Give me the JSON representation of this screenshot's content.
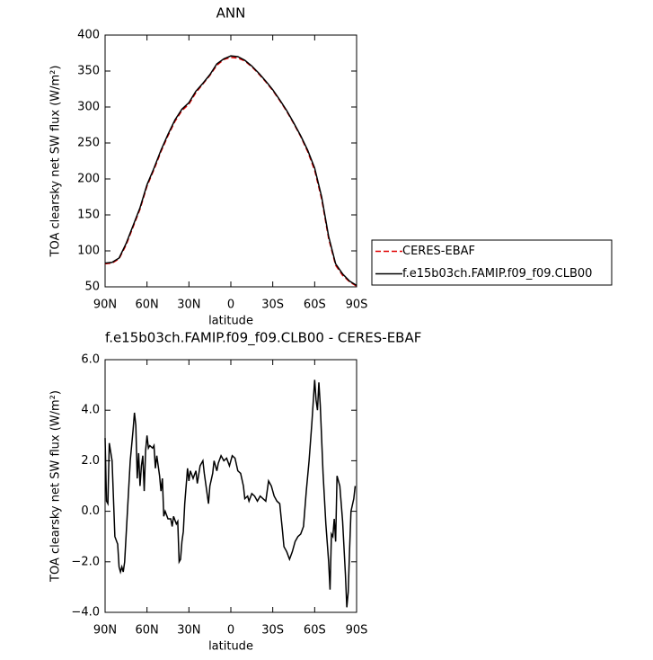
{
  "chart_data": [
    {
      "type": "line",
      "title": "ANN",
      "x_label": "latitude",
      "y_label": "TOA clearsky net SW flux (W/m²)",
      "x": [
        90,
        85,
        80,
        75,
        70,
        65,
        60,
        55,
        50,
        45,
        40,
        35,
        30,
        25,
        20,
        15,
        10,
        5,
        0,
        -5,
        -10,
        -15,
        -20,
        -25,
        -30,
        -35,
        -40,
        -45,
        -50,
        -55,
        -60,
        -65,
        -70,
        -75,
        -80,
        -85,
        -90
      ],
      "series": [
        {
          "name": "CERES-EBAF",
          "color": "#e00000",
          "linestyle": "dashed",
          "values": [
            82,
            83,
            89,
            108,
            133,
            158,
            190,
            213,
            238,
            260,
            280,
            295,
            304,
            320,
            332,
            344,
            358,
            366,
            369,
            368,
            364,
            356,
            346,
            335,
            323,
            309,
            294,
            277,
            259,
            238,
            212,
            172,
            117,
            80,
            66,
            57,
            51
          ]
        },
        {
          "name": "f.e15b03ch.FAMIP.f09_f09.CLB00",
          "color": "#000000",
          "linestyle": "solid",
          "values": [
            83,
            84,
            90,
            110,
            135,
            160,
            192,
            215,
            240,
            262,
            282,
            297,
            306,
            322,
            333,
            345,
            360,
            367,
            371,
            370,
            365,
            357,
            347,
            336,
            324,
            310,
            295,
            278,
            260,
            240,
            215,
            175,
            120,
            82,
            68,
            58,
            52
          ]
        }
      ],
      "xlim": [
        90,
        -90
      ],
      "xticks": [
        {
          "value": 90,
          "label": "90N"
        },
        {
          "value": 60,
          "label": "60N"
        },
        {
          "value": 30,
          "label": "30N"
        },
        0,
        {
          "value": -30,
          "label": "30S"
        },
        {
          "value": -60,
          "label": "60S"
        },
        {
          "value": -90,
          "label": "90S"
        }
      ],
      "ylim": [
        50,
        400
      ],
      "yticks": [
        50,
        100,
        150,
        200,
        250,
        300,
        350,
        400
      ],
      "legend": "right"
    },
    {
      "type": "line",
      "title": "f.e15b03ch.FAMIP.f09_f09.CLB00 - CERES-EBAF",
      "x_label": "latitude",
      "y_label": "TOA clearsky net SW flux (W/m²)",
      "x": [
        90,
        89,
        88,
        87,
        85,
        83,
        81,
        80,
        79,
        78,
        77,
        76,
        74,
        72,
        70,
        69,
        68,
        67,
        66,
        65,
        64,
        63,
        62,
        61,
        60,
        59,
        58,
        56,
        55,
        54,
        53,
        51,
        50,
        49,
        48,
        47,
        45,
        43,
        42,
        41,
        39,
        38,
        37,
        36,
        35,
        34,
        33,
        31,
        30,
        29,
        27,
        25,
        24,
        22,
        20,
        19,
        18,
        16,
        15,
        13,
        12,
        10,
        9,
        7,
        5,
        3,
        1,
        -1,
        -3,
        -5,
        -7,
        -9,
        -10,
        -12,
        -13,
        -15,
        -17,
        -19,
        -21,
        -23,
        -25,
        -27,
        -29,
        -31,
        -33,
        -35,
        -37,
        -38,
        -40,
        -42,
        -44,
        -46,
        -48,
        -50,
        -52,
        -54,
        -56,
        -58,
        -60,
        -61,
        -62,
        -63,
        -64,
        -66,
        -68,
        -70,
        -71,
        -72,
        -73,
        -74,
        -75,
        -76,
        -78,
        -80,
        -82,
        -83,
        -84,
        -85,
        -86,
        -88,
        -89
      ],
      "values": [
        2.9,
        0.4,
        0.3,
        2.7,
        2.0,
        -1.0,
        -1.3,
        -2.2,
        -2.4,
        -2.2,
        -2.4,
        -2.0,
        0,
        2.0,
        3.2,
        3.9,
        3.4,
        1.3,
        2.3,
        1.0,
        1.8,
        2.2,
        0.8,
        2.4,
        3.0,
        2.5,
        2.6,
        2.5,
        2.6,
        1.7,
        2.2,
        1.4,
        0.8,
        1.3,
        -0.2,
        0.0,
        -0.3,
        -0.3,
        -0.6,
        -0.2,
        -0.5,
        -0.4,
        -2.0,
        -1.9,
        -1.2,
        -0.8,
        0.3,
        1.7,
        1.2,
        1.6,
        1.3,
        1.6,
        1.1,
        1.8,
        2.0,
        1.5,
        1.1,
        0.3,
        1.0,
        1.5,
        2.0,
        1.6,
        1.9,
        2.2,
        2.0,
        2.1,
        1.8,
        2.2,
        2.1,
        1.6,
        1.5,
        1.0,
        0.5,
        0.6,
        0.4,
        0.7,
        0.6,
        0.4,
        0.6,
        0.5,
        0.4,
        1.2,
        1.0,
        0.6,
        0.4,
        0.3,
        -0.8,
        -1.4,
        -1.6,
        -1.9,
        -1.6,
        -1.2,
        -1.0,
        -0.9,
        -0.6,
        0.8,
        2.0,
        3.5,
        5.2,
        4.4,
        4.0,
        5.1,
        4.2,
        1.5,
        -0.5,
        -2.0,
        -3.1,
        -0.9,
        -1.0,
        -0.3,
        -1.2,
        1.4,
        1.0,
        -0.4,
        -2.5,
        -3.8,
        -3.2,
        -1.5,
        0.0,
        0.5,
        1.0
      ],
      "color": "#000000",
      "xlim": [
        90,
        -90
      ],
      "xticks": [
        {
          "value": 90,
          "label": "90N"
        },
        {
          "value": 60,
          "label": "60N"
        },
        {
          "value": 30,
          "label": "30N"
        },
        0,
        {
          "value": -30,
          "label": "30S"
        },
        {
          "value": -60,
          "label": "60S"
        },
        {
          "value": -90,
          "label": "90S"
        }
      ],
      "ylim": [
        -4,
        6
      ],
      "yticks": [
        {
          "value": -4,
          "label": "−4.0"
        },
        {
          "value": -2,
          "label": "−2.0"
        },
        {
          "value": 0,
          "label": "0.0"
        },
        {
          "value": 2,
          "label": "2.0"
        },
        {
          "value": 4,
          "label": "4.0"
        },
        {
          "value": 6,
          "label": "6.0"
        }
      ]
    }
  ]
}
